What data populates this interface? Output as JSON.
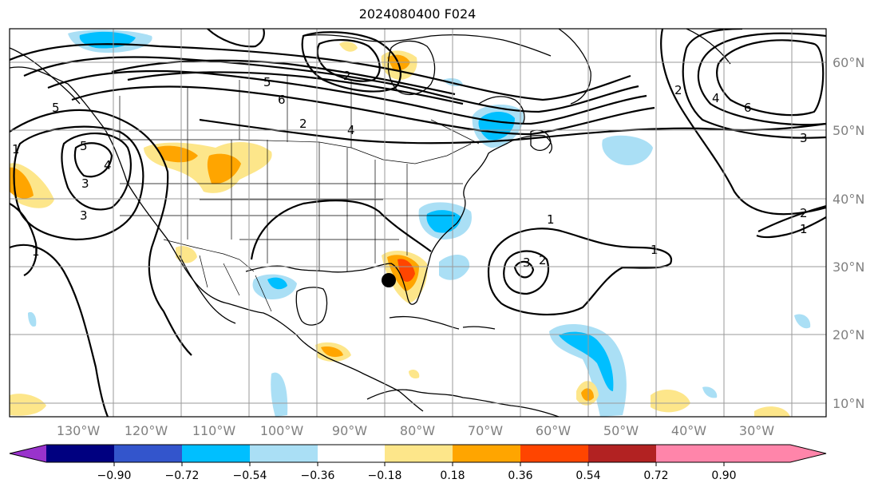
{
  "title": "2024080400 F024",
  "longitude_labels": [
    "130°W",
    "120°W",
    "110°W",
    "100°W",
    "90°W",
    "80°W",
    "70°W",
    "60°W",
    "50°W",
    "40°W",
    "30°W"
  ],
  "latitude_labels": [
    "60°N",
    "50°N",
    "40°N",
    "30°N",
    "20°N",
    "10°N"
  ],
  "colorbar": {
    "tick_labels": [
      "−0.90",
      "−0.72",
      "−0.54",
      "−0.36",
      "−0.18",
      "0.18",
      "0.36",
      "0.54",
      "0.72",
      "0.90"
    ],
    "colors": [
      "#9933cc",
      "#000080",
      "#3355cc",
      "#00bfff",
      "#aadff5",
      "#ffffff",
      "#fde68a",
      "#ffa500",
      "#ff4500",
      "#b22222",
      "#ff85aa"
    ]
  },
  "contour_labels": [
    "1",
    "2",
    "3",
    "4",
    "5",
    "6",
    "4",
    "2",
    "1",
    "5",
    "3",
    "2",
    "1",
    "3",
    "4",
    "5",
    "6",
    "2",
    "1",
    "1",
    "2",
    "3"
  ],
  "marker": {
    "symbol": "storm-center"
  }
}
